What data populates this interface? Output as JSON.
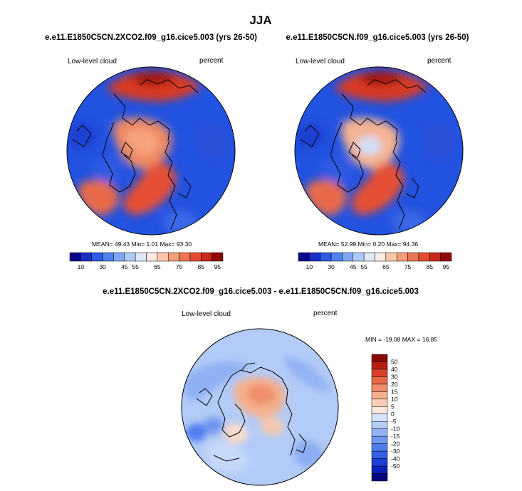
{
  "page": {
    "title": "JJA"
  },
  "colors": {
    "horizontal_scale": [
      "#08088a",
      "#1a2ec8",
      "#2e5ae6",
      "#4c82ee",
      "#7ea8f4",
      "#aecaf8",
      "#dde9fb",
      "#fbeadf",
      "#f8c7a6",
      "#f3a07a",
      "#ec7651",
      "#e24c31",
      "#c8281a",
      "#8e0a08"
    ],
    "vertical_scale": [
      "#06067e",
      "#0b1fb6",
      "#1e3fd6",
      "#3560e6",
      "#4f7cee",
      "#6f98f2",
      "#93b3f6",
      "#b6cdf8",
      "#d7e4fb",
      "#fbe8dc",
      "#f8cfb4",
      "#f5b18f",
      "#ef8d68",
      "#e86646",
      "#d9402a",
      "#b61e12",
      "#8a0706"
    ],
    "coastline": "#000000"
  },
  "chart_data": [
    {
      "type": "heatmap",
      "projection": "north polar stereographic",
      "title": "e.e11.E1850C5CN.2XCO2.f09_g16.cice5.003 (yrs 26-50)",
      "variable_label": "Low-level cloud",
      "units_label": "percent",
      "stats": {
        "mean": "49.43",
        "min": "1.01",
        "max": "93.30"
      },
      "stats_text": "MEAN= 49.43  Min=   1.01  Max=  93.30",
      "colorbar": {
        "orientation": "horizontal",
        "levels": [
          5,
          10,
          20,
          30,
          40,
          45,
          50,
          55,
          60,
          65,
          70,
          75,
          80,
          85,
          90
        ],
        "tick_labels": [
          "10",
          "30",
          "45",
          "55",
          "65",
          "75",
          "85",
          "95"
        ]
      }
    },
    {
      "type": "heatmap",
      "projection": "north polar stereographic",
      "title": "e.e11.E1850C5CN.f09_g16.cice5.003 (yrs 26-50)",
      "variable_label": "Low-level cloud",
      "units_label": "percent",
      "stats": {
        "mean": "52.99",
        "min": "0.20",
        "max": "94.36"
      },
      "stats_text": "MEAN= 52.99  Min=   0.20  Max=  94.36",
      "colorbar": {
        "orientation": "horizontal",
        "levels": [
          5,
          10,
          20,
          30,
          40,
          45,
          50,
          55,
          60,
          65,
          70,
          75,
          80,
          85,
          90
        ],
        "tick_labels": [
          "10",
          "30",
          "45",
          "55",
          "65",
          "75",
          "85",
          "95"
        ]
      }
    },
    {
      "type": "heatmap",
      "projection": "north polar stereographic",
      "title": "e.e11.E1850C5CN.2XCO2.f09_g16.cice5.003 - e.e11.E1850C5CN.f09_g16.cice5.003",
      "variable_label": "Low-level cloud",
      "units_label": "percent",
      "stats": {
        "min": "-19.08",
        "max": "16.85"
      },
      "stats_text": "MIN = -19.08 MAX =  16.85",
      "colorbar": {
        "orientation": "vertical",
        "tick_labels": [
          "50",
          "40",
          "30",
          "20",
          "15",
          "10",
          "5",
          "0",
          "-5",
          "-10",
          "-15",
          "-20",
          "-30",
          "-40",
          "-50"
        ]
      }
    }
  ]
}
